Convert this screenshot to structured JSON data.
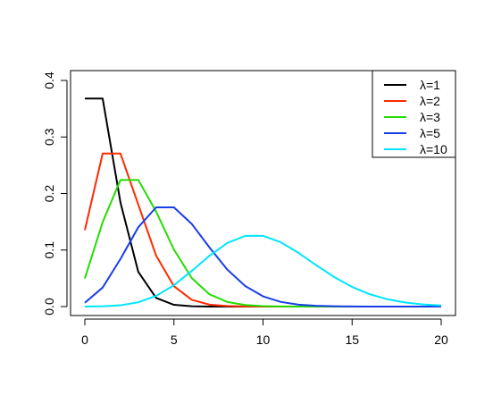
{
  "chart_data": {
    "type": "line",
    "title": "",
    "xlabel": "",
    "ylabel": "",
    "xlim": [
      0,
      20
    ],
    "ylim": [
      0,
      0.4
    ],
    "xticks": [
      0,
      5,
      10,
      15,
      20
    ],
    "yticks": [
      0.0,
      0.1,
      0.2,
      0.3,
      0.4
    ],
    "xtick_labels": [
      "0",
      "5",
      "10",
      "15",
      "20"
    ],
    "ytick_labels": [
      "0.0",
      "0.1",
      "0.2",
      "0.3",
      "0.4"
    ],
    "grid": false,
    "legend_position": "top-right",
    "x": [
      0,
      1,
      2,
      3,
      4,
      5,
      6,
      7,
      8,
      9,
      10,
      11,
      12,
      13,
      14,
      15,
      16,
      17,
      18,
      19,
      20
    ],
    "series": [
      {
        "name": "λ=1",
        "color": "#000000",
        "values": [
          0.3679,
          0.3679,
          0.1839,
          0.0613,
          0.0153,
          0.0031,
          0.0005,
          0.0001,
          0,
          0,
          0,
          0,
          0,
          0,
          0,
          0,
          0,
          0,
          0,
          0,
          0
        ]
      },
      {
        "name": "λ=2",
        "color": "#ff2a00",
        "values": [
          0.1353,
          0.2707,
          0.2707,
          0.1804,
          0.0902,
          0.0361,
          0.012,
          0.0034,
          0.0009,
          0.0002,
          0,
          0,
          0,
          0,
          0,
          0,
          0,
          0,
          0,
          0,
          0
        ]
      },
      {
        "name": "λ=3",
        "color": "#22dd00",
        "values": [
          0.0498,
          0.1494,
          0.224,
          0.224,
          0.168,
          0.1008,
          0.0504,
          0.0216,
          0.0081,
          0.0027,
          0.0008,
          0.0002,
          0.0001,
          0,
          0,
          0,
          0,
          0,
          0,
          0,
          0
        ]
      },
      {
        "name": "λ=5",
        "color": "#1a3ee6",
        "values": [
          0.0067,
          0.0337,
          0.0842,
          0.1404,
          0.1755,
          0.1755,
          0.1462,
          0.1044,
          0.0653,
          0.0363,
          0.0181,
          0.0082,
          0.0034,
          0.0013,
          0.0005,
          0.0002,
          0,
          0,
          0,
          0,
          0
        ]
      },
      {
        "name": "λ=10",
        "color": "#00e5ff",
        "values": [
          0.0,
          0.0005,
          0.0023,
          0.0076,
          0.0189,
          0.0378,
          0.0631,
          0.0901,
          0.1126,
          0.1251,
          0.1251,
          0.1137,
          0.0948,
          0.0729,
          0.0521,
          0.0347,
          0.0217,
          0.0128,
          0.0071,
          0.0037,
          0.0019
        ]
      }
    ]
  }
}
